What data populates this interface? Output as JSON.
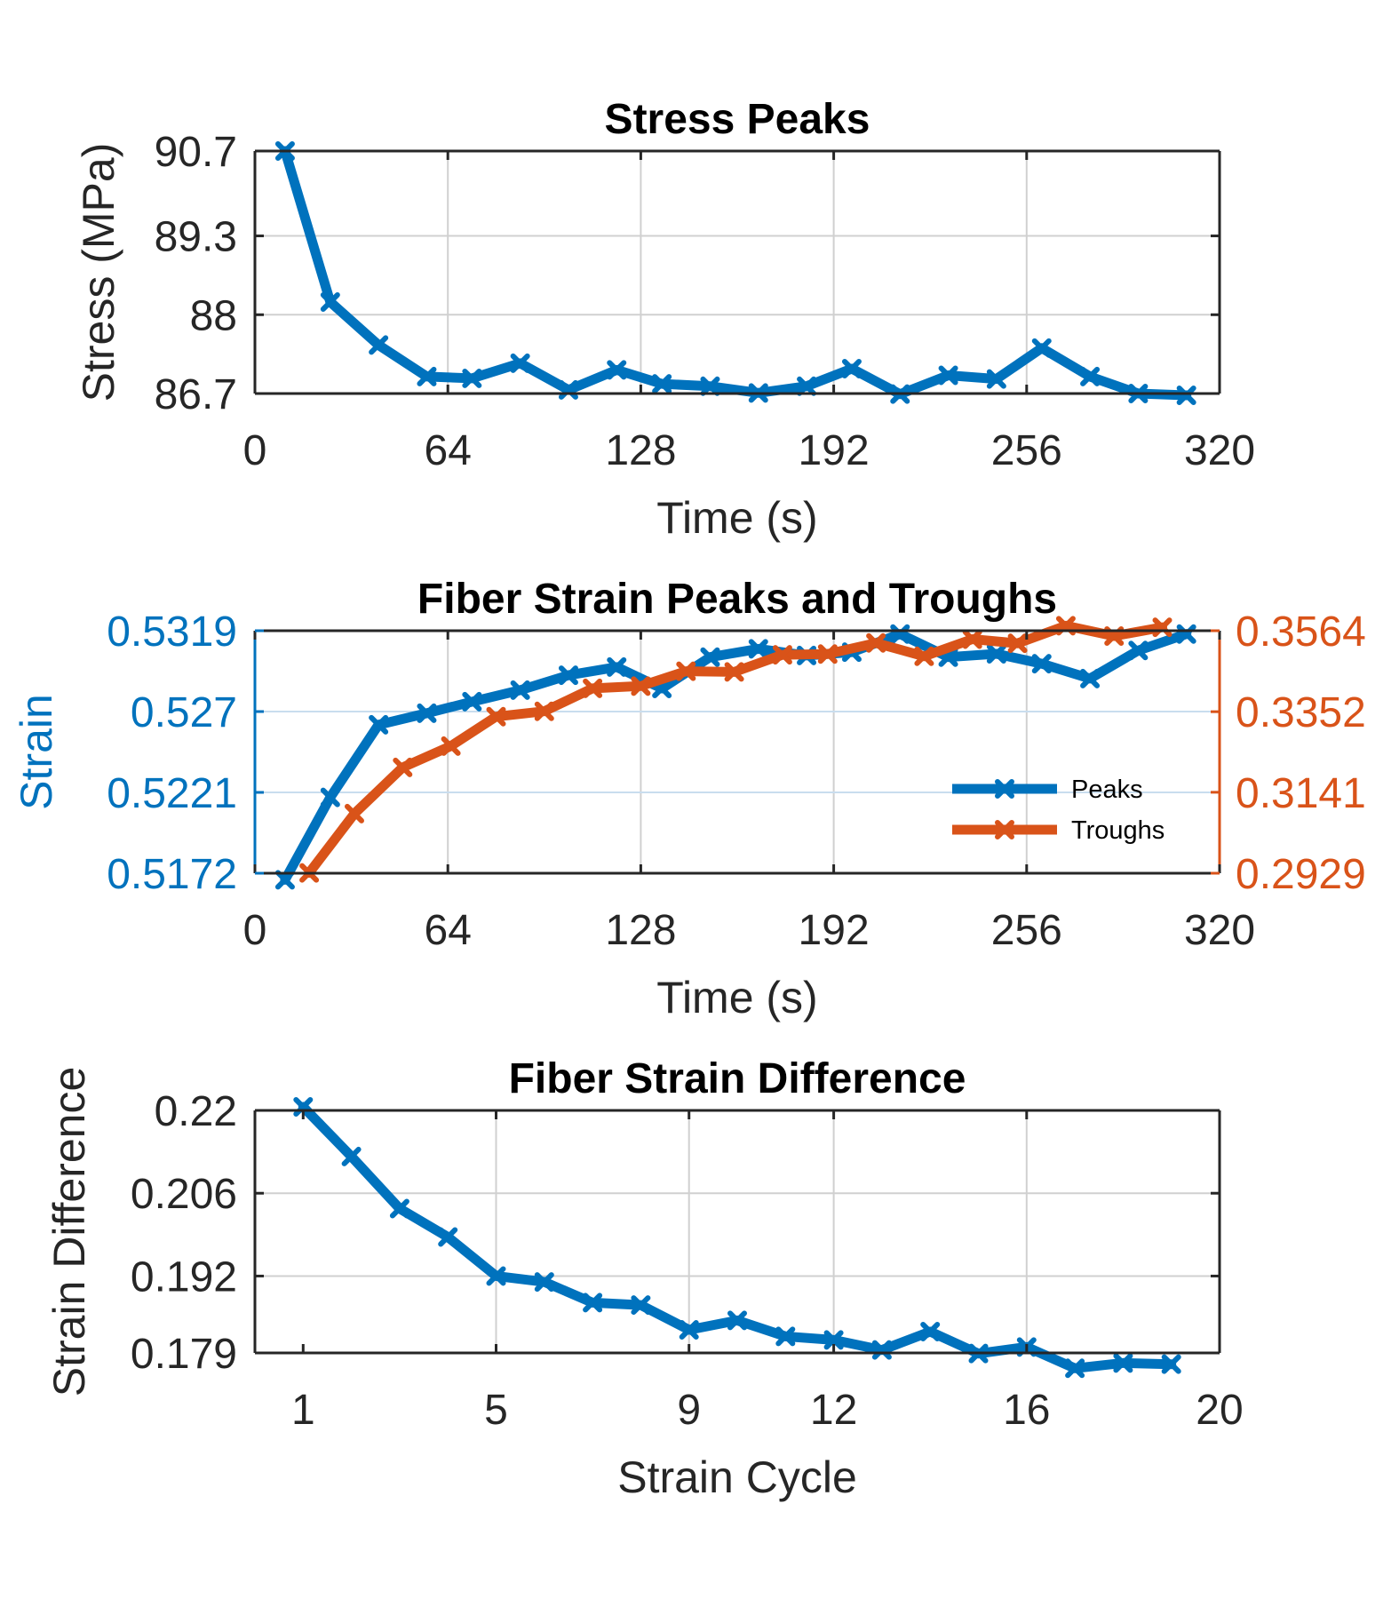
{
  "figure": {
    "background": "#ffffff"
  },
  "colors": {
    "blue": "#0072BD",
    "orange": "#D95319",
    "axis": "#262626",
    "grid": "#d0d0d0"
  },
  "chart_data": [
    {
      "type": "line",
      "title": "Stress Peaks",
      "xlabel": "Time (s)",
      "ylabel": "Stress (MPa)",
      "xlim": [
        0,
        320
      ],
      "ylim": [
        86.7,
        90.7
      ],
      "xticks": [
        "0",
        "64",
        "128",
        "192",
        "256",
        "320"
      ],
      "yticks": [
        "86.7",
        "88",
        "89.3",
        "90.7"
      ],
      "grid": true,
      "series": [
        {
          "color": "#0072BD",
          "marker": "x",
          "x": [
            10,
            25,
            41,
            57,
            72,
            88,
            104,
            120,
            135,
            151,
            167,
            183,
            198,
            214,
            230,
            246,
            261,
            277,
            293,
            309
          ],
          "y": [
            90.7,
            88.21,
            87.5,
            86.98,
            86.95,
            87.2,
            86.76,
            87.09,
            86.86,
            86.82,
            86.71,
            86.82,
            87.11,
            86.69,
            87.0,
            86.94,
            87.45,
            86.98,
            86.7,
            86.67
          ]
        }
      ]
    },
    {
      "type": "line",
      "title": "Fiber Strain Peaks and Troughs",
      "xlabel": "Time (s)",
      "ylabel": "Strain",
      "xlim": [
        0,
        320
      ],
      "ylim": [
        0.5172,
        0.5319
      ],
      "ylim_right": [
        0.2929,
        0.3564
      ],
      "xticks": [
        "0",
        "64",
        "128",
        "192",
        "256",
        "320"
      ],
      "yticks": [
        "0.5172",
        "0.5221",
        "0.527",
        "0.5319"
      ],
      "yticks_right": [
        "0.2929",
        "0.3141",
        "0.3352",
        "0.3564"
      ],
      "grid": true,
      "legend": {
        "position": "inside-lower-right",
        "entries": [
          "Peaks",
          "Troughs"
        ]
      },
      "series": [
        {
          "name": "Peaks",
          "axis": "left",
          "color": "#0072BD",
          "marker": "x",
          "x": [
            10,
            25,
            41,
            57,
            72,
            88,
            104,
            120,
            135,
            151,
            167,
            183,
            198,
            214,
            230,
            246,
            261,
            277,
            293,
            309
          ],
          "y": [
            0.5168,
            0.5218,
            0.5262,
            0.5269,
            0.5276,
            0.5283,
            0.5292,
            0.5297,
            0.5284,
            0.5303,
            0.5308,
            0.5304,
            0.5306,
            0.5317,
            0.5303,
            0.5305,
            0.5299,
            0.529,
            0.5307,
            0.5317
          ]
        },
        {
          "name": "Troughs",
          "axis": "right",
          "color": "#D95319",
          "marker": "x",
          "x": [
            18,
            33,
            49,
            65,
            80,
            96,
            112,
            128,
            143,
            159,
            175,
            190,
            206,
            222,
            238,
            253,
            269,
            285,
            301
          ],
          "y": [
            0.293,
            0.3085,
            0.3206,
            0.3262,
            0.3339,
            0.3353,
            0.3413,
            0.3419,
            0.3458,
            0.3456,
            0.3501,
            0.3503,
            0.3532,
            0.3497,
            0.3542,
            0.3531,
            0.3577,
            0.355,
            0.3573
          ]
        }
      ]
    },
    {
      "type": "line",
      "title": "Fiber Strain Difference",
      "xlabel": "Strain Cycle",
      "ylabel": "Strain Difference",
      "xlim": [
        0,
        20
      ],
      "ylim": [
        0.179,
        0.22
      ],
      "xticks": [
        "1",
        "5",
        "9",
        "12",
        "16",
        "20"
      ],
      "yticks": [
        "0.179",
        "0.192",
        "0.206",
        "0.22"
      ],
      "grid": true,
      "series": [
        {
          "color": "#0072BD",
          "marker": "x",
          "x": [
            1,
            2,
            3,
            4,
            5,
            6,
            7,
            8,
            9,
            10,
            11,
            12,
            13,
            14,
            15,
            16,
            17,
            18,
            19
          ],
          "y": [
            0.2206,
            0.2122,
            0.2034,
            0.1986,
            0.192,
            0.191,
            0.1875,
            0.1871,
            0.1829,
            0.1845,
            0.1818,
            0.1812,
            0.1795,
            0.1826,
            0.1789,
            0.18,
            0.1764,
            0.1773,
            0.1771
          ]
        }
      ]
    }
  ]
}
